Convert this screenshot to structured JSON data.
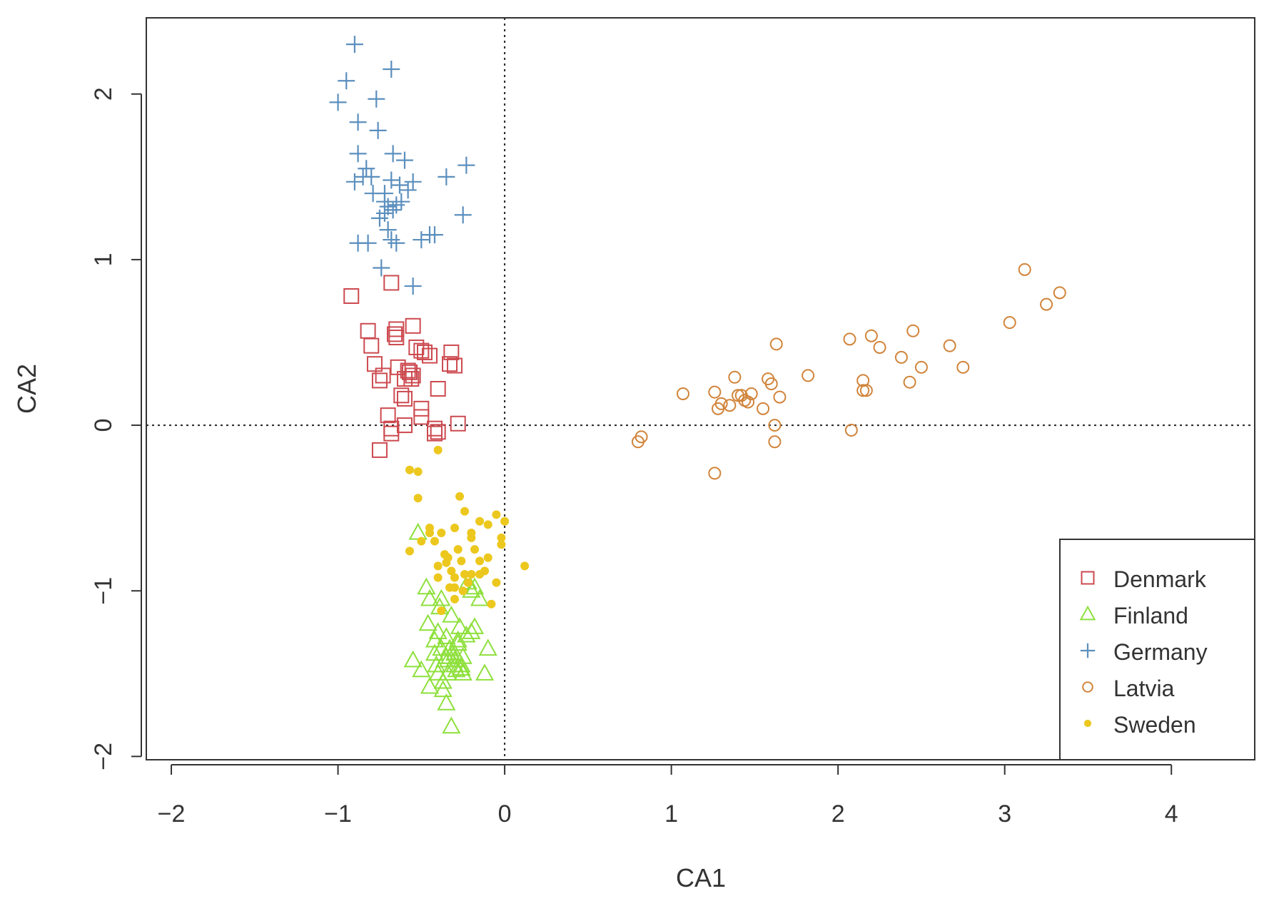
{
  "chart_data": {
    "type": "scatter",
    "title": "",
    "xlabel": "CA1",
    "ylabel": "CA2",
    "xlim": [
      -2.15,
      4.5
    ],
    "ylim": [
      -2.02,
      2.46
    ],
    "xticks": [
      -2,
      -1,
      0,
      1,
      2,
      3,
      4
    ],
    "yticks": [
      -2,
      -1,
      0,
      1,
      2
    ],
    "tick_labels_x": [
      "−2",
      "−1",
      "0",
      "1",
      "2",
      "3",
      "4"
    ],
    "tick_labels_y": [
      "−2",
      "−1",
      "0",
      "1",
      "2"
    ],
    "reference_lines": {
      "x": 0,
      "y": 0,
      "style": "dotted"
    },
    "legend_position": "bottom-right",
    "series": [
      {
        "name": "Denmark",
        "marker": "square",
        "color": "#cc4a50",
        "x": [
          -0.92,
          -0.82,
          -0.8,
          -0.78,
          -0.75,
          -0.73,
          -0.7,
          -0.68,
          -0.66,
          -0.65,
          -0.64,
          -0.62,
          -0.6,
          -0.58,
          -0.57,
          -0.55,
          -0.53,
          -0.5,
          -0.5,
          -0.48,
          -0.45,
          -0.42,
          -0.4,
          -0.33,
          -0.3,
          -0.28,
          -0.68,
          -0.65,
          -0.6,
          -0.56,
          -0.5,
          -0.42,
          -0.4,
          -0.75,
          -0.6,
          -0.55,
          -0.32,
          -0.68
        ],
        "y": [
          0.78,
          0.57,
          0.48,
          0.37,
          0.27,
          0.3,
          0.06,
          -0.05,
          0.55,
          0.58,
          0.35,
          0.18,
          0.28,
          0.33,
          0.32,
          0.6,
          0.47,
          0.1,
          0.05,
          0.44,
          0.42,
          -0.02,
          0.22,
          0.37,
          0.36,
          0.01,
          0.86,
          0.53,
          0.0,
          0.28,
          0.45,
          -0.05,
          -0.04,
          -0.15,
          0.16,
          0.3,
          0.44,
          -0.02
        ]
      },
      {
        "name": "Finland",
        "marker": "triangle",
        "color": "#8ee03c",
        "x": [
          -0.52,
          -0.47,
          -0.46,
          -0.42,
          -0.41,
          -0.4,
          -0.39,
          -0.38,
          -0.37,
          -0.36,
          -0.35,
          -0.34,
          -0.33,
          -0.32,
          -0.3,
          -0.29,
          -0.28,
          -0.27,
          -0.26,
          -0.25,
          -0.23,
          -0.2,
          -0.18,
          -0.15,
          -0.12,
          -0.1,
          -0.55,
          -0.5,
          -0.45,
          -0.4,
          -0.35,
          -0.32,
          -0.3,
          -0.28,
          -0.25,
          -0.22,
          -0.38,
          -0.33,
          -0.45,
          -0.2,
          -0.18,
          -0.35,
          -0.37,
          -0.3,
          -0.26,
          -0.42
        ],
        "y": [
          -0.65,
          -0.98,
          -1.2,
          -1.3,
          -1.45,
          -1.25,
          -1.1,
          -1.35,
          -1.55,
          -1.42,
          -1.28,
          -1.5,
          -1.4,
          -1.15,
          -1.38,
          -1.48,
          -1.32,
          -1.22,
          -1.45,
          -1.4,
          -1.27,
          -1.0,
          -1.22,
          -1.05,
          -1.5,
          -1.35,
          -1.42,
          -1.48,
          -1.58,
          -1.5,
          -1.68,
          -1.82,
          -1.45,
          -1.3,
          -1.5,
          -0.95,
          -1.05,
          -1.35,
          -1.05,
          -1.25,
          -0.98,
          -1.4,
          -1.6,
          -1.42,
          -1.47,
          -1.38
        ]
      },
      {
        "name": "Germany",
        "marker": "plus",
        "color": "#5b8fbe",
        "x": [
          -0.9,
          -0.95,
          -0.68,
          -1.0,
          -0.77,
          -0.88,
          -0.76,
          -0.88,
          -0.67,
          -0.6,
          -0.83,
          -0.85,
          -0.79,
          -0.72,
          -0.68,
          -0.63,
          -0.55,
          -0.88,
          -0.82,
          -0.75,
          -0.7,
          -0.65,
          -0.72,
          -0.58,
          -0.5,
          -0.45,
          -0.42,
          -0.74,
          -0.55,
          -0.68,
          -0.65,
          -0.35,
          -0.23,
          -0.25,
          -0.9,
          -0.8,
          -0.72,
          -0.62,
          -0.67,
          -0.7
        ],
        "y": [
          2.3,
          2.08,
          2.15,
          1.95,
          1.97,
          1.83,
          1.78,
          1.64,
          1.64,
          1.6,
          1.55,
          1.5,
          1.4,
          1.35,
          1.48,
          1.45,
          1.47,
          1.1,
          1.1,
          1.25,
          1.32,
          1.33,
          1.4,
          1.42,
          1.12,
          1.15,
          1.15,
          0.95,
          0.84,
          1.12,
          1.1,
          1.5,
          1.57,
          1.27,
          1.47,
          1.5,
          1.28,
          1.35,
          1.3,
          1.18
        ]
      },
      {
        "name": "Latvia",
        "marker": "circle",
        "color": "#d1843a",
        "x": [
          0.8,
          0.82,
          1.07,
          1.26,
          1.26,
          1.28,
          1.3,
          1.35,
          1.38,
          1.4,
          1.42,
          1.44,
          1.46,
          1.48,
          1.55,
          1.58,
          1.6,
          1.62,
          1.62,
          1.63,
          1.65,
          1.82,
          2.07,
          2.08,
          2.15,
          2.15,
          2.17,
          2.2,
          2.25,
          2.38,
          2.43,
          2.45,
          2.5,
          2.67,
          2.75,
          3.03,
          3.12,
          3.25,
          3.33
        ],
        "y": [
          -0.1,
          -0.07,
          0.19,
          0.2,
          -0.29,
          0.1,
          0.13,
          0.12,
          0.29,
          0.18,
          0.18,
          0.15,
          0.14,
          0.19,
          0.1,
          0.28,
          0.25,
          0.0,
          -0.1,
          0.49,
          0.17,
          0.3,
          0.52,
          -0.03,
          0.27,
          0.21,
          0.21,
          0.54,
          0.47,
          0.41,
          0.26,
          0.57,
          0.35,
          0.48,
          0.35,
          0.62,
          0.94,
          0.73,
          0.8
        ]
      },
      {
        "name": "Sweden",
        "marker": "dot",
        "color": "#ecc81e",
        "x": [
          -0.57,
          -0.52,
          -0.57,
          -0.4,
          -0.3,
          -0.27,
          -0.24,
          -0.2,
          -0.15,
          -0.1,
          -0.05,
          -0.02,
          0.0,
          0.12,
          -0.52,
          -0.5,
          -0.45,
          -0.42,
          -0.38,
          -0.36,
          -0.34,
          -0.32,
          -0.3,
          -0.28,
          -0.26,
          -0.24,
          -0.22,
          -0.2,
          -0.18,
          -0.15,
          -0.12,
          -0.08,
          -0.05,
          -0.02,
          -0.4,
          -0.35,
          -0.3,
          -0.25,
          -0.2,
          -0.45,
          -0.38,
          -0.33,
          -0.1,
          -0.15,
          -0.4,
          -0.3
        ],
        "y": [
          -0.27,
          -0.28,
          -0.76,
          -0.15,
          -0.62,
          -0.43,
          -0.52,
          -0.65,
          -0.58,
          -0.6,
          -0.54,
          -0.68,
          -0.58,
          -0.85,
          -0.44,
          -0.7,
          -0.62,
          -0.7,
          -0.65,
          -0.78,
          -0.8,
          -0.88,
          -0.92,
          -0.75,
          -0.82,
          -0.9,
          -0.95,
          -0.68,
          -0.75,
          -0.82,
          -0.88,
          -1.08,
          -0.95,
          -0.72,
          -0.92,
          -0.83,
          -0.98,
          -1.0,
          -0.9,
          -0.65,
          -1.12,
          -0.98,
          -0.8,
          -0.9,
          -0.85,
          -1.05
        ]
      }
    ]
  }
}
